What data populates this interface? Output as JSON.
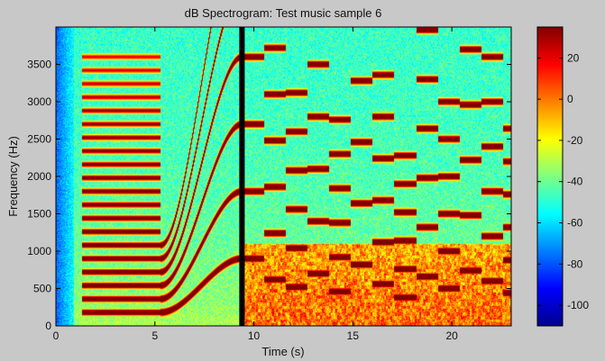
{
  "chart_data": {
    "type": "heatmap",
    "title": "dB Spectrogram: Test music sample 6",
    "xlabel": "Time (s)",
    "ylabel": "Frequency (Hz)",
    "xlim": [
      0,
      23
    ],
    "ylim": [
      0,
      4000
    ],
    "x_ticks": [
      0,
      5,
      10,
      15,
      20
    ],
    "y_ticks": [
      0,
      500,
      1000,
      1500,
      2000,
      2500,
      3000,
      3500
    ],
    "colorbar": {
      "colormap": "jet",
      "range": [
        -110,
        35
      ],
      "ticks": [
        20,
        0,
        -20,
        -40,
        -60,
        -80,
        -100
      ]
    },
    "cursor_line": {
      "time": 9.4
    },
    "segments": [
      {
        "name": "harmonic tone",
        "t_start": 1.3,
        "t_end": 5.3,
        "fundamental_hz": 180,
        "harmonics": 20
      },
      {
        "name": "glissando",
        "t_start": 5.3,
        "t_end": 9.4,
        "f_start_hz": 180,
        "f_end_hz": 900
      },
      {
        "name": "notes",
        "t_start": 9.4,
        "t_end": 23,
        "description": "discrete note events"
      }
    ]
  },
  "colors": {
    "background": "#c8c8c8",
    "cursor": "#000000"
  }
}
